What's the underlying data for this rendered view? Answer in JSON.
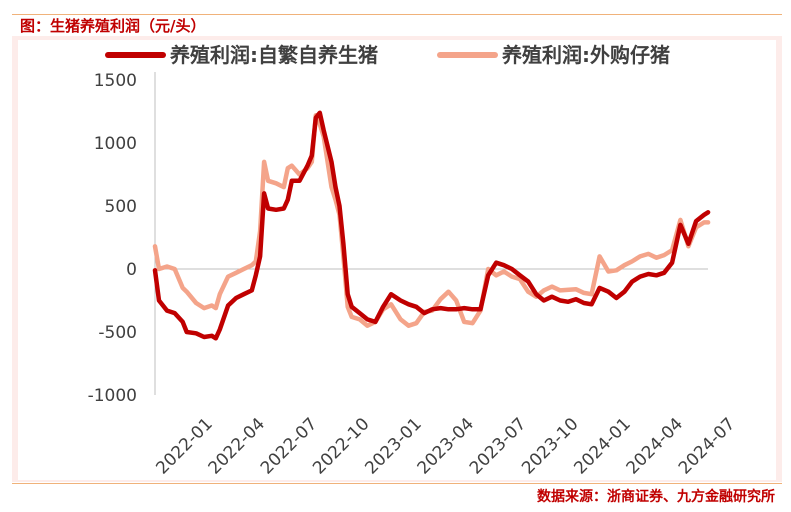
{
  "figure": {
    "title": "图：生猪养殖利润（元/头）",
    "source": "数据来源：浙商证券、九方金融研究所"
  },
  "colors": {
    "series_primary": "#c00000",
    "series_secondary": "#f4a48a",
    "accent": "#c00000"
  },
  "chart_data": {
    "type": "line",
    "xlabel": "",
    "ylabel": "",
    "ylim": [
      -1000,
      1500
    ],
    "yticks": [
      1500,
      1000,
      500,
      0,
      -500,
      -1000
    ],
    "xlim": [
      "2022-01",
      "2024-08"
    ],
    "xticks": [
      "2022-01",
      "2022-04",
      "2022-07",
      "2022-10",
      "2023-01",
      "2023-04",
      "2023-07",
      "2023-10",
      "2024-01",
      "2024-04",
      "2024-07"
    ],
    "grid": false,
    "legend_position": "top",
    "series": [
      {
        "name": "养殖利润:自繁自养生猪",
        "color": "#c00000",
        "points": [
          [
            "2022-01-01",
            -10
          ],
          [
            "2022-01-08",
            -250
          ],
          [
            "2022-01-22",
            -330
          ],
          [
            "2022-02-05",
            -350
          ],
          [
            "2022-02-19",
            -420
          ],
          [
            "2022-02-26",
            -500
          ],
          [
            "2022-03-12",
            -510
          ],
          [
            "2022-03-26",
            -540
          ],
          [
            "2022-04-09",
            -530
          ],
          [
            "2022-04-16",
            -550
          ],
          [
            "2022-04-23",
            -480
          ],
          [
            "2022-05-07",
            -290
          ],
          [
            "2022-05-21",
            -230
          ],
          [
            "2022-06-04",
            -200
          ],
          [
            "2022-06-18",
            -170
          ],
          [
            "2022-06-25",
            -50
          ],
          [
            "2022-07-02",
            100
          ],
          [
            "2022-07-09",
            600
          ],
          [
            "2022-07-16",
            480
          ],
          [
            "2022-07-30",
            470
          ],
          [
            "2022-08-13",
            480
          ],
          [
            "2022-08-20",
            550
          ],
          [
            "2022-08-27",
            700
          ],
          [
            "2022-09-10",
            700
          ],
          [
            "2022-09-24",
            820
          ],
          [
            "2022-10-01",
            900
          ],
          [
            "2022-10-08",
            1200
          ],
          [
            "2022-10-15",
            1240
          ],
          [
            "2022-10-22",
            1100
          ],
          [
            "2022-11-05",
            850
          ],
          [
            "2022-11-12",
            650
          ],
          [
            "2022-11-19",
            500
          ],
          [
            "2022-11-26",
            200
          ],
          [
            "2022-12-03",
            -200
          ],
          [
            "2022-12-10",
            -300
          ],
          [
            "2022-12-24",
            -350
          ],
          [
            "2023-01-07",
            -400
          ],
          [
            "2023-01-21",
            -420
          ],
          [
            "2023-02-04",
            -300
          ],
          [
            "2023-02-18",
            -200
          ],
          [
            "2023-03-04",
            -250
          ],
          [
            "2023-03-18",
            -280
          ],
          [
            "2023-04-01",
            -300
          ],
          [
            "2023-04-15",
            -350
          ],
          [
            "2023-04-29",
            -320
          ],
          [
            "2023-05-13",
            -310
          ],
          [
            "2023-05-27",
            -320
          ],
          [
            "2023-06-10",
            -320
          ],
          [
            "2023-06-24",
            -310
          ],
          [
            "2023-07-08",
            -320
          ],
          [
            "2023-07-22",
            -320
          ],
          [
            "2023-08-05",
            -50
          ],
          [
            "2023-08-19",
            50
          ],
          [
            "2023-09-02",
            30
          ],
          [
            "2023-09-16",
            0
          ],
          [
            "2023-09-30",
            -50
          ],
          [
            "2023-10-14",
            -100
          ],
          [
            "2023-10-28",
            -200
          ],
          [
            "2023-11-11",
            -250
          ],
          [
            "2023-11-25",
            -220
          ],
          [
            "2023-12-09",
            -250
          ],
          [
            "2023-12-23",
            -260
          ],
          [
            "2024-01-06",
            -240
          ],
          [
            "2024-01-20",
            -270
          ],
          [
            "2024-02-03",
            -280
          ],
          [
            "2024-02-17",
            -150
          ],
          [
            "2024-03-02",
            -180
          ],
          [
            "2024-03-16",
            -230
          ],
          [
            "2024-03-30",
            -180
          ],
          [
            "2024-04-13",
            -100
          ],
          [
            "2024-04-27",
            -60
          ],
          [
            "2024-05-11",
            -40
          ],
          [
            "2024-05-25",
            -50
          ],
          [
            "2024-06-08",
            -30
          ],
          [
            "2024-06-22",
            50
          ],
          [
            "2024-07-06",
            350
          ],
          [
            "2024-07-20",
            200
          ],
          [
            "2024-08-03",
            380
          ],
          [
            "2024-08-17",
            430
          ],
          [
            "2024-08-24",
            450
          ]
        ]
      },
      {
        "name": "养殖利润:外购仔猪",
        "color": "#f4a48a",
        "points": [
          [
            "2022-01-01",
            180
          ],
          [
            "2022-01-08",
            0
          ],
          [
            "2022-01-22",
            20
          ],
          [
            "2022-02-05",
            0
          ],
          [
            "2022-02-19",
            -150
          ],
          [
            "2022-02-26",
            -180
          ],
          [
            "2022-03-12",
            -270
          ],
          [
            "2022-03-26",
            -310
          ],
          [
            "2022-04-09",
            -290
          ],
          [
            "2022-04-16",
            -310
          ],
          [
            "2022-04-23",
            -200
          ],
          [
            "2022-05-07",
            -60
          ],
          [
            "2022-05-21",
            -30
          ],
          [
            "2022-06-04",
            0
          ],
          [
            "2022-06-18",
            30
          ],
          [
            "2022-06-25",
            60
          ],
          [
            "2022-07-02",
            300
          ],
          [
            "2022-07-09",
            850
          ],
          [
            "2022-07-16",
            700
          ],
          [
            "2022-07-30",
            680
          ],
          [
            "2022-08-13",
            650
          ],
          [
            "2022-08-20",
            800
          ],
          [
            "2022-08-27",
            820
          ],
          [
            "2022-09-10",
            750
          ],
          [
            "2022-09-24",
            800
          ],
          [
            "2022-10-01",
            850
          ],
          [
            "2022-10-08",
            1220
          ],
          [
            "2022-10-15",
            1150
          ],
          [
            "2022-10-22",
            1050
          ],
          [
            "2022-11-05",
            650
          ],
          [
            "2022-11-12",
            550
          ],
          [
            "2022-11-19",
            430
          ],
          [
            "2022-11-26",
            100
          ],
          [
            "2022-12-03",
            -300
          ],
          [
            "2022-12-10",
            -380
          ],
          [
            "2022-12-24",
            -400
          ],
          [
            "2023-01-07",
            -450
          ],
          [
            "2023-01-21",
            -420
          ],
          [
            "2023-02-04",
            -320
          ],
          [
            "2023-02-18",
            -280
          ],
          [
            "2023-03-04",
            -400
          ],
          [
            "2023-03-18",
            -450
          ],
          [
            "2023-04-01",
            -430
          ],
          [
            "2023-04-15",
            -340
          ],
          [
            "2023-04-29",
            -330
          ],
          [
            "2023-05-13",
            -240
          ],
          [
            "2023-05-27",
            -180
          ],
          [
            "2023-06-10",
            -250
          ],
          [
            "2023-06-24",
            -420
          ],
          [
            "2023-07-08",
            -430
          ],
          [
            "2023-07-22",
            -330
          ],
          [
            "2023-08-05",
            0
          ],
          [
            "2023-08-19",
            -50
          ],
          [
            "2023-09-02",
            -20
          ],
          [
            "2023-09-16",
            -60
          ],
          [
            "2023-09-30",
            -80
          ],
          [
            "2023-10-14",
            -180
          ],
          [
            "2023-10-28",
            -220
          ],
          [
            "2023-11-11",
            -170
          ],
          [
            "2023-11-25",
            -140
          ],
          [
            "2023-12-09",
            -170
          ],
          [
            "2024-01-06",
            -160
          ],
          [
            "2024-01-20",
            -190
          ],
          [
            "2024-02-03",
            -200
          ],
          [
            "2024-02-17",
            100
          ],
          [
            "2024-03-02",
            -20
          ],
          [
            "2024-03-16",
            -10
          ],
          [
            "2024-03-30",
            30
          ],
          [
            "2024-04-13",
            60
          ],
          [
            "2024-04-27",
            100
          ],
          [
            "2024-05-11",
            120
          ],
          [
            "2024-05-25",
            90
          ],
          [
            "2024-06-08",
            110
          ],
          [
            "2024-06-22",
            150
          ],
          [
            "2024-07-06",
            390
          ],
          [
            "2024-07-20",
            180
          ],
          [
            "2024-08-03",
            330
          ],
          [
            "2024-08-17",
            370
          ],
          [
            "2024-08-24",
            370
          ]
        ]
      }
    ]
  }
}
